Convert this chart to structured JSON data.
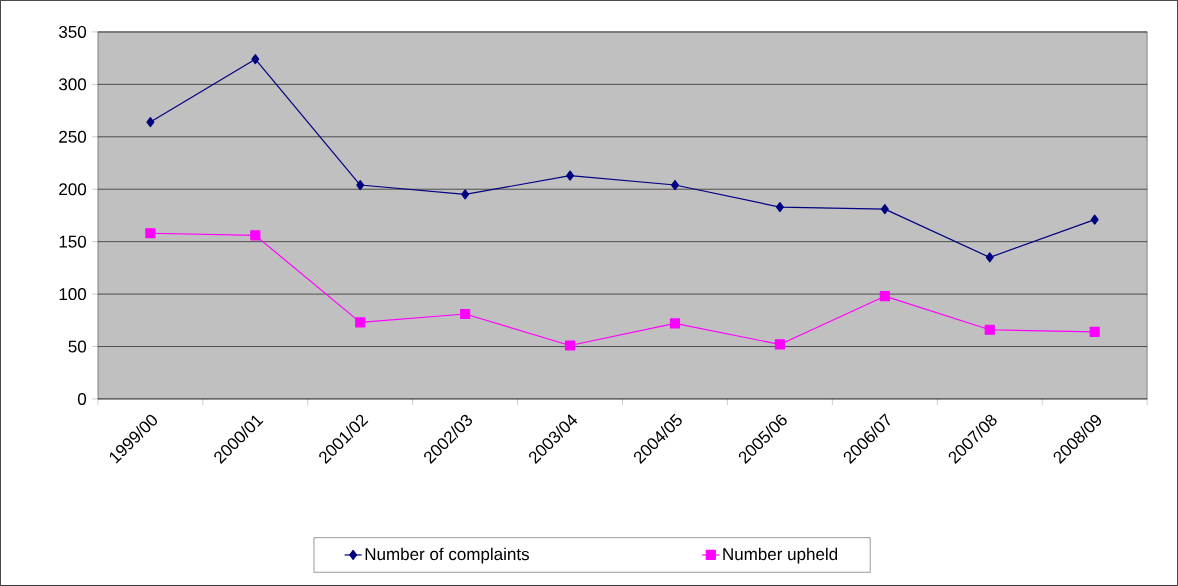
{
  "chart_data": {
    "type": "line",
    "categories": [
      "1999/00",
      "2000/01",
      "2001/02",
      "2002/03",
      "2003/04",
      "2004/05",
      "2005/06",
      "2006/07",
      "2007/08",
      "2008/09"
    ],
    "series": [
      {
        "name": "Number of complaints",
        "color": "#000080",
        "marker": "diamond",
        "values": [
          264,
          324,
          204,
          195,
          213,
          204,
          183,
          181,
          135,
          171
        ]
      },
      {
        "name": "Number upheld",
        "color": "#ff00ff",
        "marker": "square",
        "values": [
          158,
          156,
          73,
          81,
          51,
          72,
          52,
          98,
          66,
          64
        ]
      }
    ],
    "ylim": [
      0,
      350
    ],
    "yticks": [
      0,
      50,
      100,
      150,
      200,
      250,
      300,
      350
    ],
    "grid": "y",
    "legend": "bottom",
    "line_style": "solid"
  }
}
